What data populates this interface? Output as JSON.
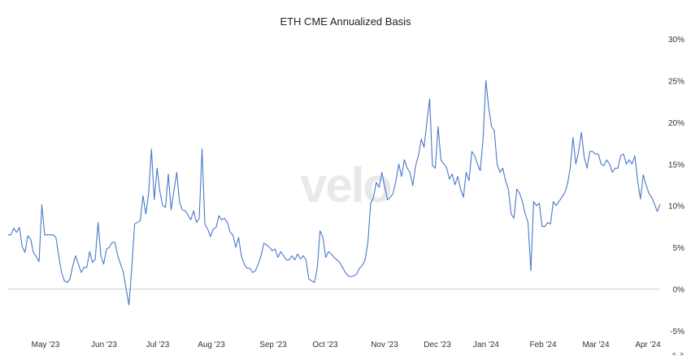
{
  "chart_data": {
    "type": "line",
    "title": "ETH CME Annualized Basis",
    "xlabel": "",
    "ylabel": "",
    "ylim": [
      -5,
      30
    ],
    "y_ticks": [
      -5,
      0,
      5,
      10,
      15,
      20,
      25,
      30
    ],
    "y_tick_labels": [
      "-5%",
      "0%",
      "5%",
      "10%",
      "15%",
      "20%",
      "25%",
      "30%"
    ],
    "x_tick_labels": [
      "May '23",
      "Jun '23",
      "Jul '23",
      "Aug '23",
      "Sep '23",
      "Oct '23",
      "Nov '23",
      "Dec '23",
      "Jan '24",
      "Feb '24",
      "Mar '24",
      "Apr '24"
    ],
    "watermark": "velo",
    "nav_label": "< >",
    "grid": "zero line only",
    "line_color": "#4a78c8",
    "series": [
      {
        "values": [
          6.5,
          6.5,
          7.3,
          6.8,
          7.4,
          5.1,
          4.4,
          6.4,
          6.0,
          4.4,
          3.9,
          3.3,
          10.1,
          6.5,
          6.5,
          6.5,
          6.5,
          6.2,
          4.0,
          2.0,
          1.0,
          0.8,
          1.2,
          2.8,
          4.0,
          3.0,
          2.0,
          2.6,
          2.6,
          4.5,
          3.2,
          3.6,
          8.0,
          4.0,
          3.0,
          4.8,
          5.0,
          5.6,
          5.6,
          4.0,
          3.0,
          2.0,
          0.0,
          -1.9,
          2.6,
          7.8,
          8.0,
          8.2,
          11.2,
          9.0,
          11.5,
          16.8,
          10.7,
          14.5,
          11.7,
          10.0,
          9.8,
          13.8,
          9.5,
          11.8,
          14.0,
          10.4,
          9.5,
          9.4,
          8.9,
          8.3,
          9.4,
          8.0,
          8.5,
          16.8,
          7.8,
          7.2,
          6.3,
          7.2,
          7.4,
          8.8,
          8.3,
          8.5,
          8.0,
          6.8,
          6.5,
          5.0,
          6.2,
          4.0,
          3.0,
          2.5,
          2.5,
          2.0,
          2.2,
          3.0,
          4.0,
          5.5,
          5.3,
          5.0,
          4.6,
          4.8,
          3.8,
          4.5,
          4.0,
          3.5,
          3.5,
          4.0,
          3.5,
          4.2,
          3.6,
          4.0,
          3.5,
          1.2,
          1.0,
          0.8,
          2.5,
          7.0,
          6.2,
          3.8,
          4.5,
          4.2,
          3.8,
          3.5,
          3.2,
          2.6,
          2.0,
          1.6,
          1.5,
          1.6,
          1.8,
          2.5,
          2.8,
          3.5,
          5.5,
          10.3,
          11.0,
          12.8,
          12.2,
          14.0,
          12.3,
          10.7,
          11.0,
          11.5,
          13.0,
          15.0,
          13.5,
          15.5,
          14.5,
          14.0,
          12.4,
          14.8,
          16.0,
          18.0,
          17.0,
          20.0,
          22.8,
          14.8,
          14.5,
          19.5,
          15.5,
          15.0,
          14.6,
          13.2,
          13.8,
          12.5,
          13.5,
          12.0,
          11.0,
          14.0,
          13.0,
          16.5,
          16.0,
          15.0,
          14.2,
          18.0,
          25.0,
          21.8,
          19.5,
          19.0,
          15.0,
          14.0,
          14.5,
          13.0,
          12.0,
          9.0,
          8.5,
          12.0,
          11.5,
          10.5,
          9.0,
          8.0,
          2.2,
          10.5,
          10.0,
          10.3,
          7.5,
          7.5,
          8.0,
          7.8,
          10.5,
          10.0,
          10.5,
          11.0,
          11.5,
          12.5,
          14.5,
          18.2,
          15.0,
          16.5,
          18.8,
          15.8,
          14.5,
          16.5,
          16.5,
          16.2,
          16.2,
          15.0,
          14.8,
          15.5,
          15.0,
          14.0,
          14.5,
          14.5,
          16.0,
          16.2,
          15.0,
          15.5,
          15.0,
          16.0,
          13.0,
          10.8,
          13.7,
          12.5,
          11.5,
          11.0,
          10.2,
          9.3,
          10.2
        ]
      }
    ]
  }
}
